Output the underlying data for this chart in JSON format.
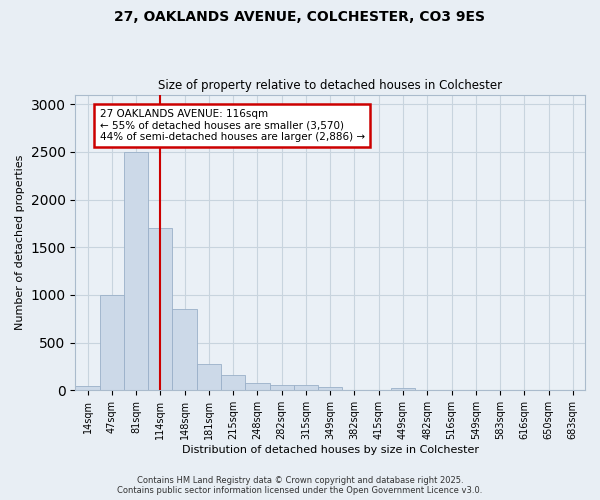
{
  "title_line1": "27, OAKLANDS AVENUE, COLCHESTER, CO3 9ES",
  "title_line2": "Size of property relative to detached houses in Colchester",
  "xlabel": "Distribution of detached houses by size in Colchester",
  "ylabel": "Number of detached properties",
  "categories": [
    "14sqm",
    "47sqm",
    "81sqm",
    "114sqm",
    "148sqm",
    "181sqm",
    "215sqm",
    "248sqm",
    "282sqm",
    "315sqm",
    "349sqm",
    "382sqm",
    "415sqm",
    "449sqm",
    "482sqm",
    "516sqm",
    "549sqm",
    "583sqm",
    "616sqm",
    "650sqm",
    "683sqm"
  ],
  "values": [
    50,
    1000,
    2500,
    1700,
    850,
    280,
    160,
    75,
    55,
    55,
    30,
    5,
    0,
    20,
    0,
    0,
    0,
    0,
    0,
    0,
    0
  ],
  "bar_color": "#ccd9e8",
  "bar_edge_color": "#9ab0c8",
  "grid_color": "#c8d4de",
  "property_line_x": 3.0,
  "annotation_text_line1": "27 OAKLANDS AVENUE: 116sqm",
  "annotation_text_line2": "← 55% of detached houses are smaller (3,570)",
  "annotation_text_line3": "44% of semi-detached houses are larger (2,886) →",
  "annotation_box_color": "#ffffff",
  "annotation_box_edge": "#cc0000",
  "vline_color": "#cc0000",
  "ylim": [
    0,
    3100
  ],
  "yticks": [
    0,
    500,
    1000,
    1500,
    2000,
    2500,
    3000
  ],
  "footer_line1": "Contains HM Land Registry data © Crown copyright and database right 2025.",
  "footer_line2": "Contains public sector information licensed under the Open Government Licence v3.0.",
  "bg_color": "#e8eef4",
  "plot_bg_color": "#eaf0f6"
}
